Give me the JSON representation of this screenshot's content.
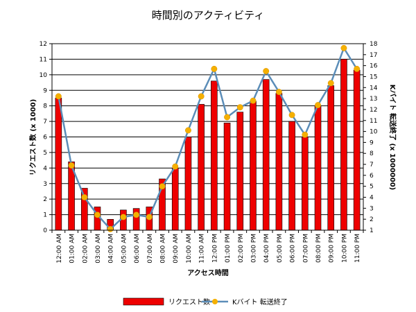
{
  "chart_data": {
    "type": "bar",
    "title": "時間別のアクティビティ",
    "xlabel": "アクセス時間",
    "ylabel_left": "リクエスト数 (x 1000)",
    "ylabel_right": "Kバイト 転送終了 (x 1000000)",
    "categories": [
      "12:00 AM",
      "01:00 AM",
      "02:00 AM",
      "03:00 AM",
      "04:00 AM",
      "05:00 AM",
      "06:00 AM",
      "07:00 AM",
      "08:00 AM",
      "09:00 AM",
      "10:00 AM",
      "11:00 AM",
      "12:00 PM",
      "01:00 PM",
      "02:00 PM",
      "03:00 PM",
      "04:00 PM",
      "05:00 PM",
      "06:00 PM",
      "07:00 PM",
      "08:00 PM",
      "09:00 PM",
      "10:00 PM",
      "11:00 PM"
    ],
    "ylim_left": [
      0,
      12
    ],
    "yticks_left": [
      0,
      1,
      2,
      3,
      4,
      5,
      6,
      7,
      8,
      9,
      10,
      11,
      12
    ],
    "ylim_right": [
      1,
      18
    ],
    "yticks_right": [
      1,
      2,
      3,
      4,
      5,
      6,
      7,
      8,
      9,
      10,
      11,
      12,
      13,
      14,
      15,
      16,
      17,
      18
    ],
    "grid": true,
    "legend_position": "bottom",
    "series": [
      {
        "name": "リクエスト数",
        "type": "bar",
        "axis": "left",
        "color": "#ee0000",
        "values": [
          8.5,
          4.4,
          2.7,
          1.5,
          0.7,
          1.3,
          1.4,
          1.5,
          3.3,
          4.0,
          6.0,
          8.1,
          9.6,
          6.9,
          7.6,
          8.3,
          9.7,
          8.8,
          7.0,
          6.0,
          8.0,
          9.3,
          11.0,
          10.3
        ]
      },
      {
        "name": "Kバイト 転送終了",
        "type": "line",
        "axis": "right",
        "color": "#5b8db8",
        "marker_color": "#f5b000",
        "values": [
          13.2,
          6.9,
          4.0,
          2.4,
          1.1,
          2.2,
          2.4,
          2.2,
          5.0,
          6.8,
          10.1,
          13.2,
          15.7,
          11.3,
          12.2,
          12.8,
          15.5,
          13.6,
          11.5,
          9.7,
          12.4,
          14.4,
          17.6,
          15.7
        ]
      }
    ]
  }
}
